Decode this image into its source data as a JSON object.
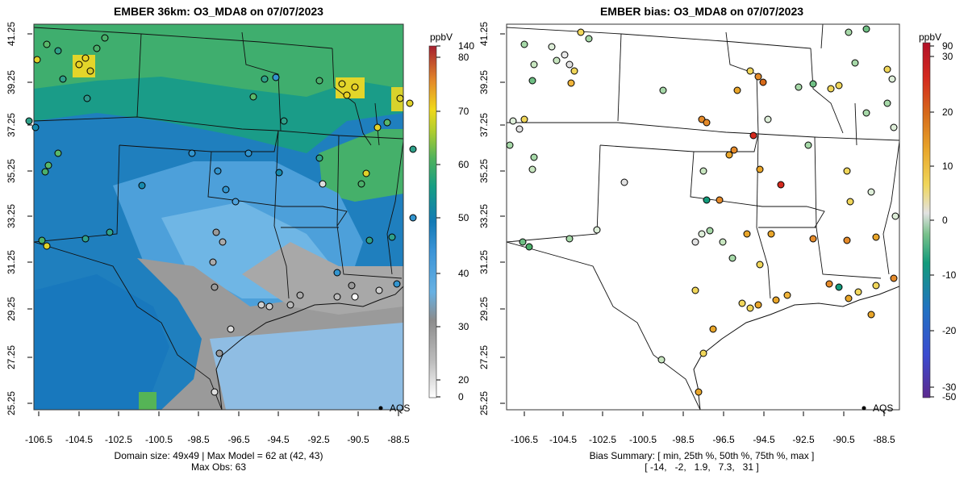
{
  "left_map": {
    "title": "EMBER 36km: O3_MDA8 on 07/07/2023",
    "x_ticks": [
      "-106.5",
      "-104.5",
      "-102.5",
      "-100.5",
      "-98.5",
      "-96.5",
      "-94.5",
      "-92.5",
      "-90.5",
      "-88.5"
    ],
    "y_ticks": [
      "41.25",
      "39.25",
      "37.25",
      "35.25",
      "33.25",
      "31.25",
      "29.25",
      "27.25",
      "25.25"
    ],
    "legend_label": "AQS",
    "footer_line1": "Domain size: 49x49 | Max Model = 62 at (42, 43)",
    "footer_line2": "Max Obs: 63",
    "colorbar": {
      "unit": "ppbV",
      "ticks": [
        "0",
        "20",
        "30",
        "40",
        "50",
        "60",
        "70",
        "80",
        "140"
      ],
      "tick_values": [
        0,
        20,
        30,
        40,
        50,
        60,
        70,
        80,
        140
      ]
    }
  },
  "right_map": {
    "title": "EMBER bias: O3_MDA8 on 07/07/2023",
    "x_ticks": [
      "-106.5",
      "-104.5",
      "-102.5",
      "-100.5",
      "-98.5",
      "-96.5",
      "-94.5",
      "-92.5",
      "-90.5",
      "-88.5"
    ],
    "y_ticks": [
      "41.25",
      "39.25",
      "37.25",
      "35.25",
      "33.25",
      "31.25",
      "29.25",
      "27.25",
      "25.25"
    ],
    "legend_label": "AQS",
    "footer_line1": "Bias Summary: [ min, 25th %, 50th %, 75th %, max ]",
    "footer_line2": "[ -14,   -2,   1.9,   7.3,   31 ]",
    "colorbar": {
      "unit": "ppbV",
      "ticks": [
        "90",
        "30",
        "20",
        "10",
        "0",
        "-10",
        "-20",
        "-30",
        "-50"
      ],
      "tick_values": [
        90,
        30,
        20,
        10,
        0,
        -10,
        -20,
        -30,
        -50
      ]
    }
  },
  "colors": {
    "water": "#86C6EA",
    "border": "#111111",
    "frame": "#333333"
  }
}
